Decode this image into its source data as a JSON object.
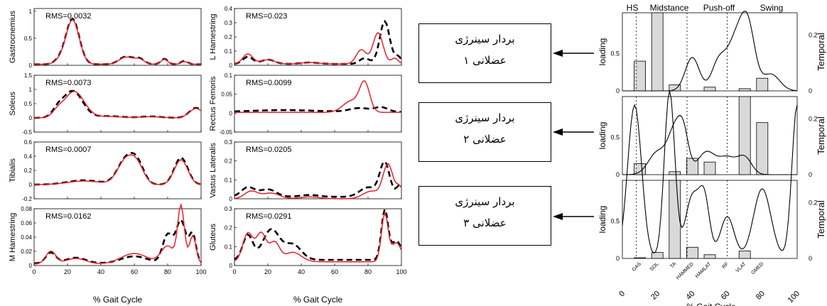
{
  "left_charts": [
    {
      "ylabel": "Gastrocnemius",
      "rms": "RMS=0.0032",
      "yticks": [
        "0",
        "0.5",
        "1"
      ],
      "ylim": [
        0,
        1.05
      ]
    },
    {
      "ylabel": "L Hamestring",
      "rms": "RMS=0.023",
      "yticks": [
        "0",
        "0.1",
        "0.2",
        "0.3",
        "0.4"
      ],
      "ylim": [
        0,
        0.4
      ]
    },
    {
      "ylabel": "Soleus",
      "rms": "RMS=0.0073",
      "yticks": [
        "-0.5",
        "0",
        "0.5",
        "1",
        "1.5"
      ],
      "ylim": [
        -0.5,
        1.5
      ]
    },
    {
      "ylabel": "Rectus Femoris",
      "rms": "RMS=0.0099",
      "yticks": [
        "-0.05",
        "0",
        "0.05",
        "0.1"
      ],
      "ylim": [
        -0.05,
        0.1
      ]
    },
    {
      "ylabel": "Tibialis",
      "rms": "RMS=0.0007",
      "yticks": [
        "-0.2",
        "0",
        "0.2",
        "0.4",
        "0.6"
      ],
      "ylim": [
        -0.2,
        0.6
      ]
    },
    {
      "ylabel": "Vastus Lateralis",
      "rms": "RMS=0.0205",
      "yticks": [
        "0",
        "0.1",
        "0.2",
        "0.3"
      ],
      "ylim": [
        0,
        0.3
      ]
    },
    {
      "ylabel": "M Hamestring",
      "rms": "RMS=0.0162",
      "yticks": [
        "0",
        "0.02",
        "0.04",
        "0.06",
        "0.08"
      ],
      "ylim": [
        0,
        0.08
      ]
    },
    {
      "ylabel": "Gluteus",
      "rms": "RMS=0.0291",
      "yticks": [
        "0",
        "0.1",
        "0.2",
        "0.3"
      ],
      "ylim": [
        0,
        0.3
      ]
    }
  ],
  "x_ticks": [
    "0",
    "20",
    "40",
    "60",
    "80",
    "100"
  ],
  "x_label": "% Gait Cycle",
  "boxes": [
    {
      "line1": "بردار سینرژی",
      "line2": "عضلانی ۱"
    },
    {
      "line1": "بردار سینرژی",
      "line2": "عضلانی ۲"
    },
    {
      "line1": "بردار سینرژی",
      "line2": "عضلانی ۳"
    }
  ],
  "right_panel": {
    "phases": [
      "HS",
      "Midstance",
      "Push-off",
      "Swing"
    ],
    "left_label": "loading",
    "right_label": "Temporal",
    "left_yticks": [
      "0",
      "0.5"
    ],
    "right_yticks": [
      "0",
      "0.2"
    ],
    "muscles": [
      "GAS",
      "SOL",
      "TA",
      "HAMMED",
      "HAMLAT",
      "RF",
      "VLAT",
      "GMED"
    ],
    "x_ticks": [
      "0",
      "20",
      "40",
      "60",
      "80",
      "100"
    ],
    "x_label": "% Gait Cycle",
    "loadings": [
      [
        0.4,
        1.05,
        0.08,
        0,
        0.05,
        0,
        0.03,
        0.17
      ],
      [
        0.15,
        0,
        0.04,
        0.22,
        0.17,
        0,
        1.05,
        0.7
      ],
      [
        0.01,
        0.08,
        1.05,
        0.15,
        0.05,
        0,
        0.1,
        0
      ]
    ]
  },
  "colors": {
    "measured": "#000000",
    "reconstructed": "#e8202a",
    "bar_fill": "#d9d9d9"
  }
}
